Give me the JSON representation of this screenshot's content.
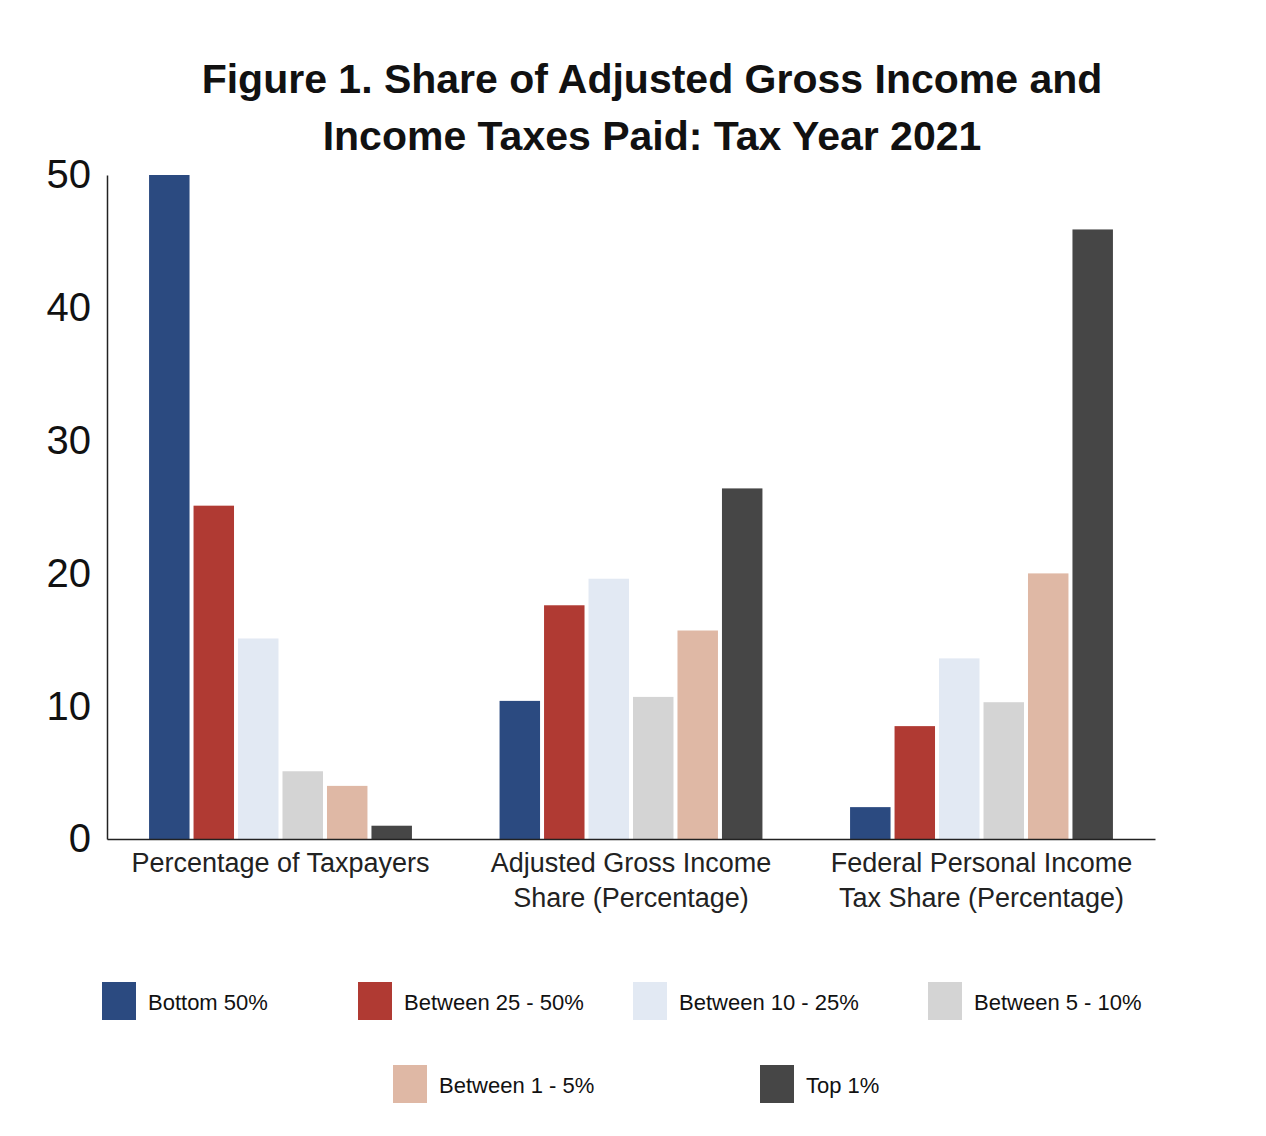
{
  "chart_data": {
    "type": "bar",
    "title": "Figure 1. Share of Adjusted Gross Income and Income Taxes Paid: Tax Year 2021",
    "categories": [
      "Percentage of Taxpayers",
      "Adjusted Gross Income Share (Percentage)",
      "Federal Personal Income Tax Share (Percentage)"
    ],
    "series": [
      {
        "name": "Bottom 50%",
        "color": "#2b4a80",
        "values": [
          50,
          10.4,
          2.4
        ]
      },
      {
        "name": "Between 25 - 50%",
        "color": "#b03a33",
        "values": [
          25.1,
          17.6,
          8.5
        ]
      },
      {
        "name": "Between 10 - 25%",
        "color": "#e2e9f3",
        "values": [
          15.1,
          19.6,
          13.6
        ]
      },
      {
        "name": "Between 5 - 10%",
        "color": "#d4d4d4",
        "values": [
          5.1,
          10.7,
          10.3
        ]
      },
      {
        "name": "Between 1 - 5%",
        "color": "#dfb8a5",
        "values": [
          4.0,
          15.7,
          20.0
        ]
      },
      {
        "name": "Top 1%",
        "color": "#464646",
        "values": [
          1.0,
          26.4,
          45.9
        ]
      }
    ],
    "ylim": [
      0,
      50
    ],
    "yticks": [
      0,
      10,
      20,
      30,
      40,
      50
    ],
    "grid": false,
    "legend": "bottom"
  }
}
